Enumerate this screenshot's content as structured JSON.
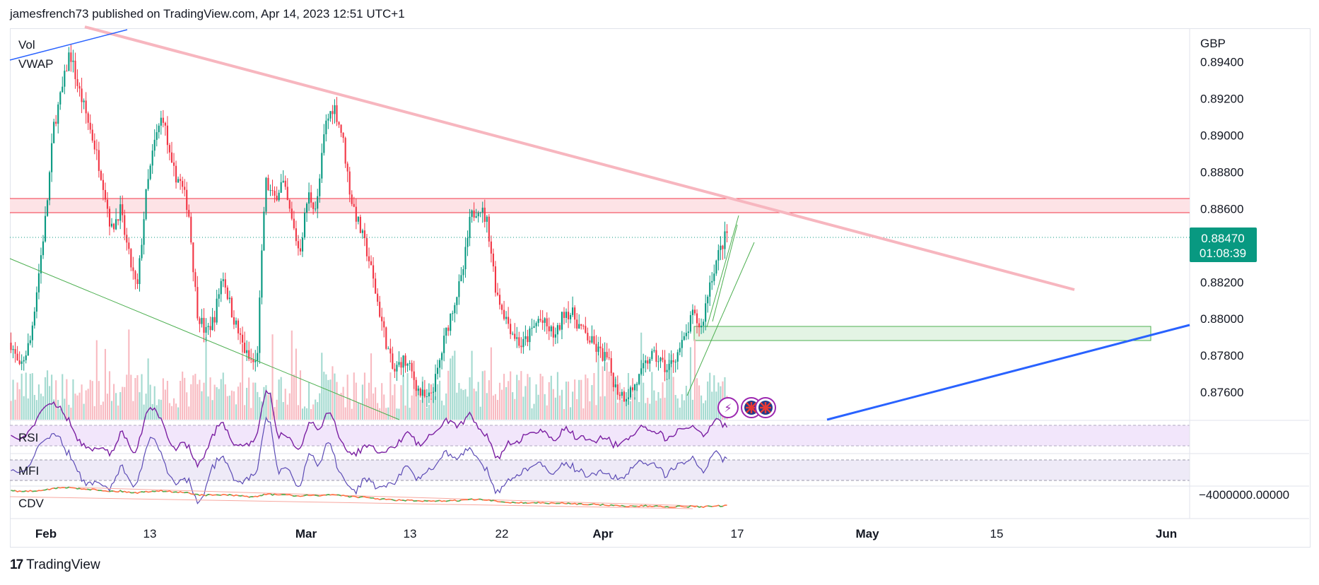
{
  "header": {
    "byline": "jamesfrench73 published on TradingView.com, Apr 14, 2023 12:51 UTC+1"
  },
  "footer": {
    "brand": "TradingView"
  },
  "legend": {
    "vol": "Vol",
    "vwap": "VWAP",
    "rsi": "RSI",
    "mfi": "MFI",
    "cdv": "CDV"
  },
  "currency": "GBP",
  "price_labels": [
    "0.89400",
    "0.89200",
    "0.89000",
    "0.88800",
    "0.88600",
    "0.88200",
    "0.88000",
    "0.87800",
    "0.87600"
  ],
  "current_price": {
    "price": "0.88470",
    "countdown": "01:08:39"
  },
  "cdv_label": "−4000000.00000",
  "time_labels": [
    "Feb",
    "13",
    "Mar",
    "13",
    "22",
    "Apr",
    "17",
    "May",
    "15",
    "Jun"
  ],
  "colors": {
    "up": "#089981",
    "down": "#f23645",
    "vwap": "#2962ff",
    "pink_line": "#f7b6bf",
    "green_zone": "#4caf50",
    "rsi_line": "#7b1fa2",
    "mfi_line": "#5c4bb5",
    "tag_bg": "#089981"
  },
  "chart_data": {
    "type": "candlestick",
    "symbol_currency": "GBP",
    "y_range": [
      0.8745,
      0.8958
    ],
    "price_ticks": [
      0.894,
      0.892,
      0.89,
      0.888,
      0.886,
      0.882,
      0.88,
      0.878,
      0.876
    ],
    "last_price": 0.8847,
    "resistance_zone": [
      0.8861,
      0.8868
    ],
    "demand_zone": [
      0.8792,
      0.8799
    ],
    "swing_path": [
      [
        0,
        0.8787
      ],
      [
        8,
        0.8772
      ],
      [
        18,
        0.8788
      ],
      [
        25,
        0.882
      ],
      [
        33,
        0.8858
      ],
      [
        40,
        0.8905
      ],
      [
        48,
        0.8925
      ],
      [
        55,
        0.8946
      ],
      [
        62,
        0.8928
      ],
      [
        70,
        0.8912
      ],
      [
        78,
        0.8895
      ],
      [
        86,
        0.8875
      ],
      [
        94,
        0.8848
      ],
      [
        102,
        0.886
      ],
      [
        110,
        0.8835
      ],
      [
        118,
        0.8815
      ],
      [
        126,
        0.8866
      ],
      [
        134,
        0.8895
      ],
      [
        142,
        0.8912
      ],
      [
        150,
        0.8882
      ],
      [
        158,
        0.8875
      ],
      [
        166,
        0.886
      ],
      [
        174,
        0.8805
      ],
      [
        182,
        0.8792
      ],
      [
        190,
        0.88
      ],
      [
        198,
        0.8825
      ],
      [
        206,
        0.8805
      ],
      [
        214,
        0.879
      ],
      [
        222,
        0.8778
      ],
      [
        230,
        0.8775
      ],
      [
        238,
        0.8875
      ],
      [
        246,
        0.8865
      ],
      [
        254,
        0.8875
      ],
      [
        262,
        0.8855
      ],
      [
        270,
        0.8836
      ],
      [
        278,
        0.8868
      ],
      [
        286,
        0.886
      ],
      [
        294,
        0.8905
      ],
      [
        302,
        0.8917
      ],
      [
        310,
        0.89
      ],
      [
        318,
        0.8866
      ],
      [
        326,
        0.885
      ],
      [
        334,
        0.8835
      ],
      [
        342,
        0.8812
      ],
      [
        350,
        0.879
      ],
      [
        358,
        0.877
      ],
      [
        366,
        0.8778
      ],
      [
        374,
        0.8772
      ],
      [
        382,
        0.876
      ],
      [
        390,
        0.8755
      ],
      [
        398,
        0.8768
      ],
      [
        406,
        0.879
      ],
      [
        414,
        0.8808
      ],
      [
        422,
        0.8822
      ],
      [
        430,
        0.8855
      ],
      [
        438,
        0.8862
      ],
      [
        446,
        0.8852
      ],
      [
        454,
        0.8815
      ],
      [
        462,
        0.8802
      ],
      [
        470,
        0.8792
      ],
      [
        478,
        0.8785
      ],
      [
        486,
        0.8792
      ],
      [
        494,
        0.88
      ],
      [
        502,
        0.8795
      ],
      [
        510,
        0.879
      ],
      [
        518,
        0.8805
      ],
      [
        526,
        0.8802
      ],
      [
        534,
        0.8794
      ],
      [
        542,
        0.8788
      ],
      [
        550,
        0.8782
      ],
      [
        558,
        0.8778
      ],
      [
        566,
        0.8762
      ],
      [
        574,
        0.8758
      ],
      [
        582,
        0.8762
      ],
      [
        590,
        0.877
      ],
      [
        598,
        0.878
      ],
      [
        606,
        0.8778
      ],
      [
        614,
        0.8772
      ],
      [
        622,
        0.878
      ],
      [
        630,
        0.8788
      ],
      [
        638,
        0.8802
      ],
      [
        646,
        0.8795
      ],
      [
        654,
        0.882
      ],
      [
        662,
        0.8835
      ],
      [
        670,
        0.8847
      ]
    ],
    "candle_count": 335,
    "indicators": [
      "Vol",
      "VWAP",
      "RSI",
      "MFI",
      "CDV"
    ],
    "x_axis": [
      "Feb",
      "13",
      "Mar",
      "13",
      "22",
      "Apr",
      "17",
      "May",
      "15",
      "Jun"
    ]
  }
}
